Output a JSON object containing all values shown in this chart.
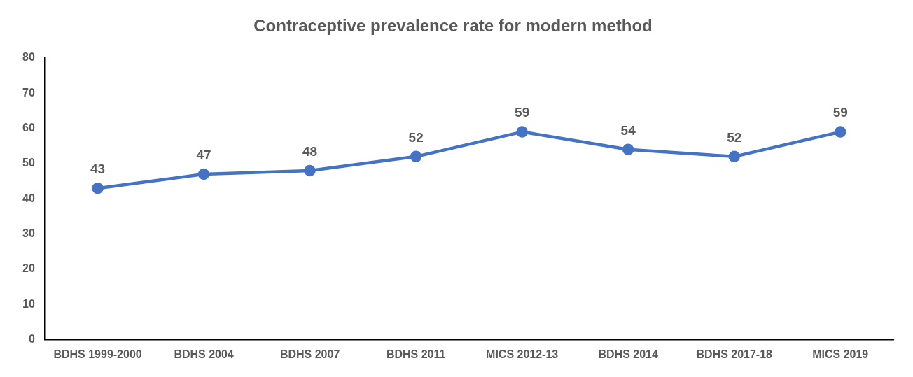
{
  "chart_data": {
    "type": "line",
    "title": "Contraceptive prevalence rate for modern method",
    "categories": [
      "BDHS 1999-2000",
      "BDHS 2004",
      "BDHS 2007",
      "BDHS 2011",
      "MICS 2012-13",
      "BDHS 2014",
      "BDHS 2017-18",
      "MICS 2019"
    ],
    "series": [
      {
        "color": "#4472c4",
        "values": [
          43,
          47,
          48,
          52,
          59,
          54,
          52,
          59
        ]
      }
    ],
    "ylim": [
      0,
      80
    ],
    "yticks": [
      0,
      10,
      20,
      30,
      40,
      50,
      60,
      70,
      80
    ],
    "grid": false,
    "legend": false,
    "marker": "circle",
    "line_style": "solid",
    "data_labels": true
  }
}
